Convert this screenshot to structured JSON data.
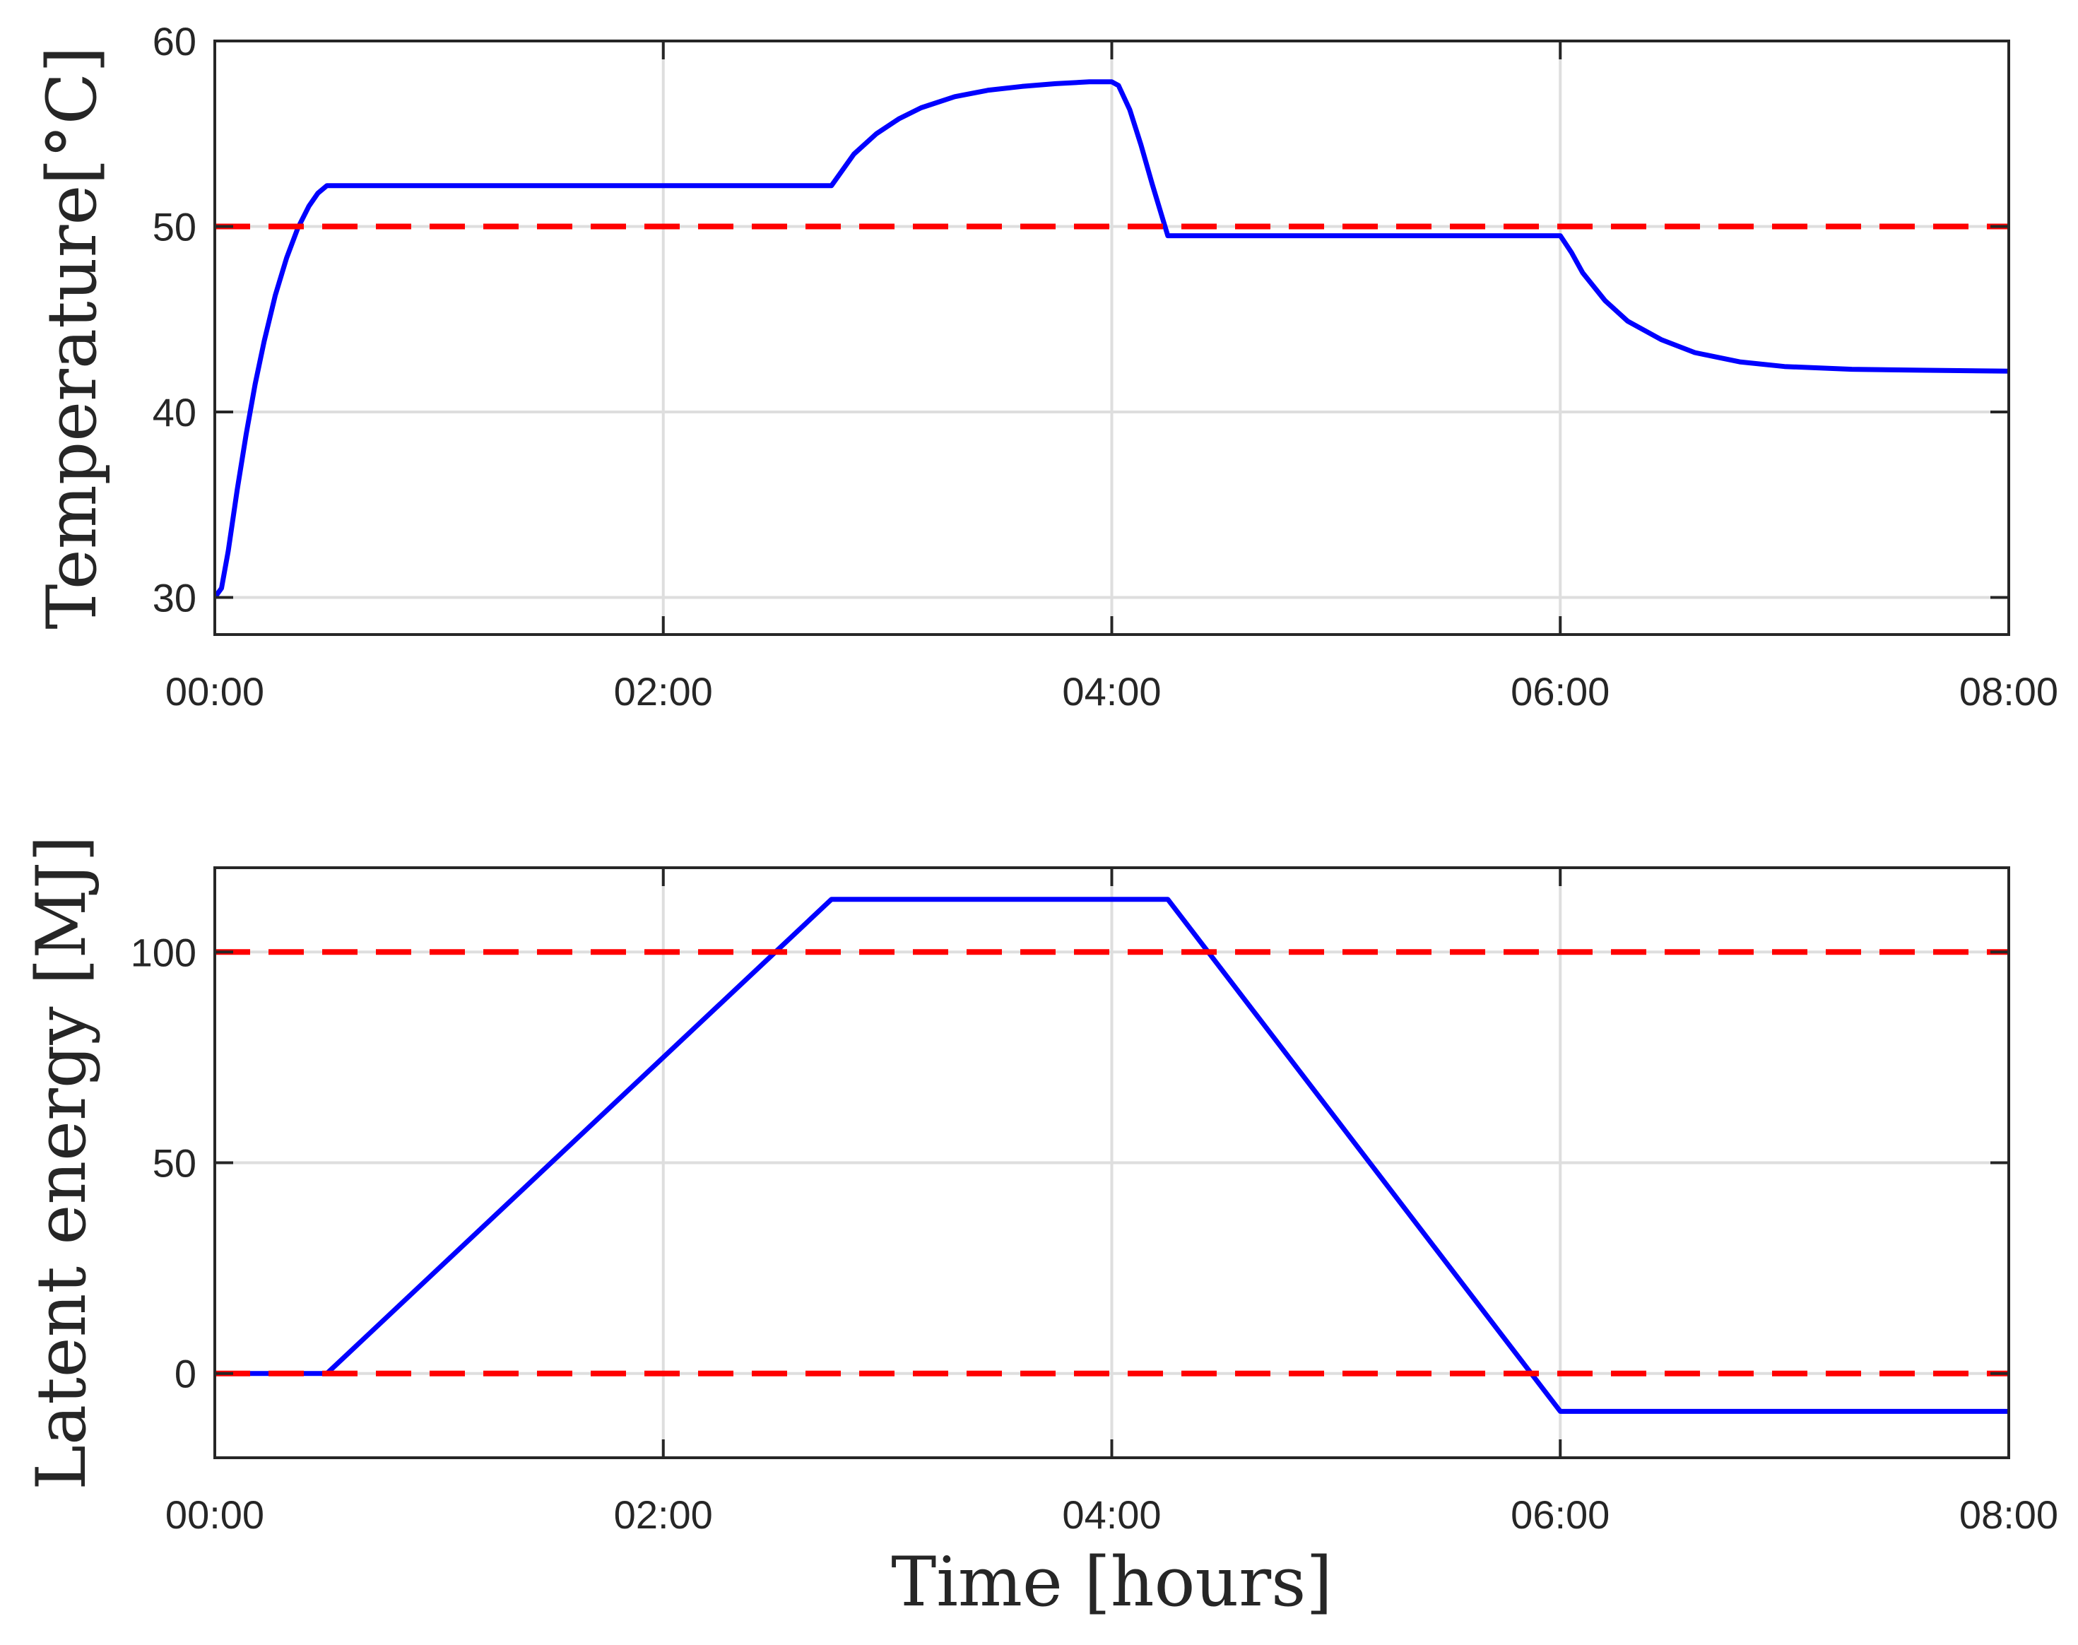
{
  "chart_data": [
    {
      "type": "line",
      "title": "",
      "xlabel": "",
      "ylabel": "Temperature[°C]",
      "x_unit": "hours",
      "xlim": [
        0,
        8
      ],
      "ylim": [
        28,
        60
      ],
      "x_ticks": [
        0,
        2,
        4,
        6,
        8
      ],
      "x_tick_labels": [
        "00:00",
        "02:00",
        "04:00",
        "06:00",
        "08:00"
      ],
      "y_ticks": [
        30,
        40,
        50,
        60
      ],
      "y_tick_labels": [
        "30",
        "40",
        "50",
        "60"
      ],
      "grid": true,
      "series": [
        {
          "color": "#0000ff",
          "style": "solid",
          "x": [
            0,
            0.03,
            0.06,
            0.1,
            0.14,
            0.18,
            0.22,
            0.27,
            0.32,
            0.37,
            0.42,
            0.46,
            0.5,
            2.75,
            2.85,
            2.95,
            3.05,
            3.15,
            3.3,
            3.45,
            3.6,
            3.75,
            3.9,
            4.0,
            4.03,
            4.08,
            4.13,
            4.18,
            4.25,
            6.0,
            6.05,
            6.1,
            6.2,
            6.3,
            6.45,
            6.6,
            6.8,
            7.0,
            7.3,
            7.6,
            8.0
          ],
          "y": [
            30,
            30.5,
            32.5,
            35.8,
            38.8,
            41.5,
            43.8,
            46.3,
            48.3,
            49.9,
            51.1,
            51.8,
            52.2,
            52.2,
            53.9,
            55.0,
            55.8,
            56.4,
            57.0,
            57.35,
            57.55,
            57.7,
            57.8,
            57.8,
            57.6,
            56.3,
            54.4,
            52.3,
            49.5,
            49.5,
            48.6,
            47.5,
            46.0,
            44.9,
            43.9,
            43.2,
            42.7,
            42.45,
            42.3,
            42.25,
            42.2
          ]
        },
        {
          "color": "#ff0000",
          "style": "dashed",
          "x": [
            0,
            8
          ],
          "y": [
            50,
            50
          ]
        }
      ]
    },
    {
      "type": "line",
      "title": "",
      "xlabel": "Time [hours]",
      "ylabel": "Latent energy [MJ]",
      "x_unit": "hours",
      "xlim": [
        0,
        8
      ],
      "ylim": [
        -20,
        120
      ],
      "x_ticks": [
        0,
        2,
        4,
        6,
        8
      ],
      "x_tick_labels": [
        "00:00",
        "02:00",
        "04:00",
        "06:00",
        "08:00"
      ],
      "y_ticks": [
        0,
        50,
        100
      ],
      "y_tick_labels": [
        "0",
        "50",
        "100"
      ],
      "grid": true,
      "series": [
        {
          "color": "#0000ff",
          "style": "solid",
          "x": [
            0,
            0.5,
            2.75,
            4.25,
            6.0,
            8.0
          ],
          "y": [
            0,
            0,
            112.5,
            112.5,
            -9,
            -9
          ]
        },
        {
          "color": "#ff0000",
          "style": "dashed",
          "x": [
            0,
            8
          ],
          "y": [
            100,
            100
          ]
        },
        {
          "color": "#ff0000",
          "style": "dashed",
          "x": [
            0,
            8
          ],
          "y": [
            0,
            0
          ]
        }
      ]
    }
  ]
}
